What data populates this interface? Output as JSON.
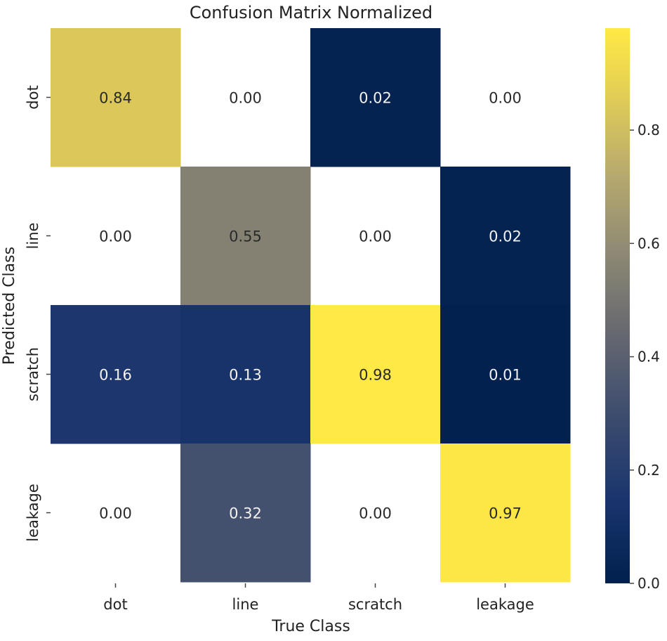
{
  "chart_data": {
    "type": "heatmap",
    "title": "Confusion Matrix Normalized",
    "xlabel": "True Class",
    "ylabel": "Predicted Class",
    "x_categories": [
      "dot",
      "line",
      "scratch",
      "leakage"
    ],
    "y_categories": [
      "dot",
      "line",
      "scratch",
      "leakage"
    ],
    "values": [
      [
        0.84,
        0.0,
        0.02,
        0.0
      ],
      [
        0.0,
        0.55,
        0.0,
        0.02
      ],
      [
        0.16,
        0.13,
        0.98,
        0.01
      ],
      [
        0.0,
        0.32,
        0.0,
        0.97
      ]
    ],
    "blank_cells": [
      [
        0,
        1
      ],
      [
        0,
        3
      ],
      [
        1,
        0
      ],
      [
        1,
        2
      ],
      [
        3,
        0
      ],
      [
        3,
        2
      ]
    ],
    "colormap": "cividis",
    "colorbar": {
      "range": [
        0,
        0.98
      ],
      "ticks": [
        0.0,
        0.2,
        0.4,
        0.6,
        0.8
      ],
      "tick_labels": [
        "0.0",
        "0.2",
        "0.4",
        "0.6",
        "0.8"
      ]
    },
    "annotation_format": "0.00"
  }
}
